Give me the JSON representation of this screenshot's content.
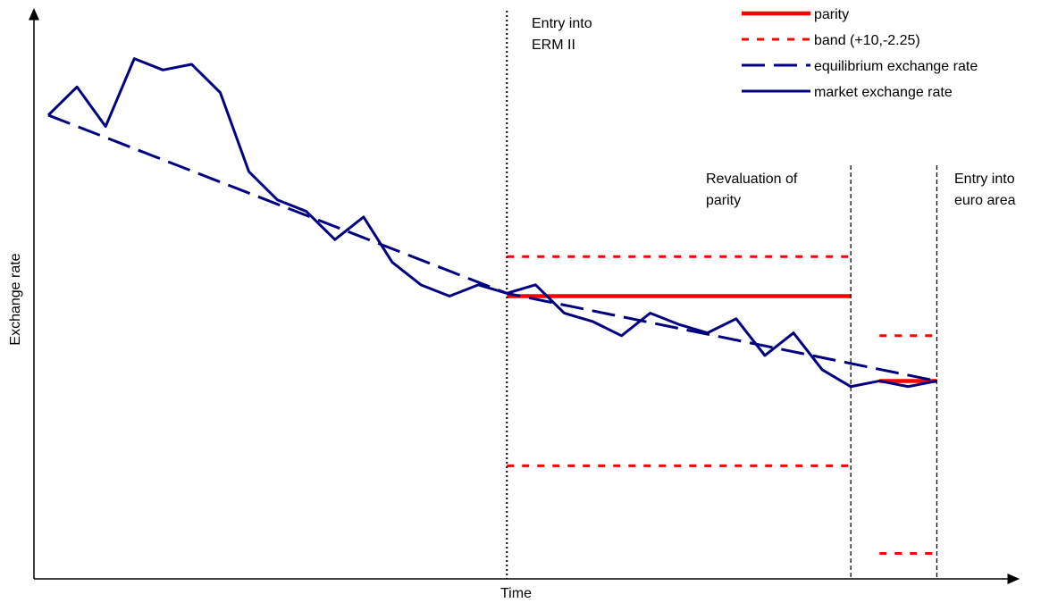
{
  "chart_data": {
    "type": "line",
    "title": "",
    "xlabel": "Time",
    "ylabel": "Exchange rate",
    "grid": false,
    "legend_position": "top-right",
    "colors": {
      "parity": "#ff0000",
      "band": "#ff0000",
      "equilibrium": "#000080",
      "market": "#000080"
    },
    "legend": [
      {
        "key": "parity",
        "label": "parity",
        "style": "solid-thick"
      },
      {
        "key": "band",
        "label": "band (+10,-2.25)",
        "style": "dotted"
      },
      {
        "key": "equilibrium",
        "label": "equilibrium exchange rate",
        "style": "dashed"
      },
      {
        "key": "market",
        "label": "market exchange rate",
        "style": "solid"
      }
    ],
    "annotations": [
      {
        "id": "erm",
        "lines": [
          "Entry into",
          "ERM II"
        ],
        "x": 16
      },
      {
        "id": "reval",
        "lines": [
          "Revaluation of",
          "parity"
        ],
        "x": 28
      },
      {
        "id": "euro",
        "lines": [
          "Entry into",
          "euro area"
        ],
        "x": 31
      }
    ],
    "x_range": [
      -0.5,
      33.7
    ],
    "y_range": [
      0,
      100
    ],
    "series": {
      "market": [
        [
          0,
          82
        ],
        [
          1,
          87
        ],
        [
          2,
          80
        ],
        [
          3,
          92
        ],
        [
          4,
          90
        ],
        [
          5,
          91
        ],
        [
          6,
          86
        ],
        [
          7,
          72
        ],
        [
          8,
          67
        ],
        [
          9,
          65
        ],
        [
          10,
          60
        ],
        [
          11,
          64
        ],
        [
          12,
          56
        ],
        [
          13,
          52
        ],
        [
          14,
          50
        ],
        [
          15,
          52
        ],
        [
          16,
          50.5
        ],
        [
          17,
          52
        ],
        [
          18,
          47
        ],
        [
          19,
          45.5
        ],
        [
          20,
          43
        ],
        [
          21,
          47
        ],
        [
          22,
          45
        ],
        [
          23,
          43.5
        ],
        [
          24,
          46
        ],
        [
          25,
          39.5
        ],
        [
          26,
          43.5
        ],
        [
          27,
          37
        ],
        [
          28,
          34
        ],
        [
          29,
          35
        ],
        [
          30,
          34
        ],
        [
          31,
          35
        ]
      ],
      "equilibrium": [
        [
          0,
          82
        ],
        [
          16,
          50.5
        ],
        [
          31,
          35
        ]
      ],
      "parity": [
        {
          "from": 16,
          "to": 28,
          "value": 50
        },
        {
          "from": 29,
          "to": 31,
          "value": 35
        }
      ],
      "band": [
        {
          "from": 16,
          "to": 28,
          "upper": 57,
          "lower": 20
        },
        {
          "from": 29,
          "to": 31,
          "upper": 43,
          "lower": 4.5
        }
      ]
    }
  }
}
